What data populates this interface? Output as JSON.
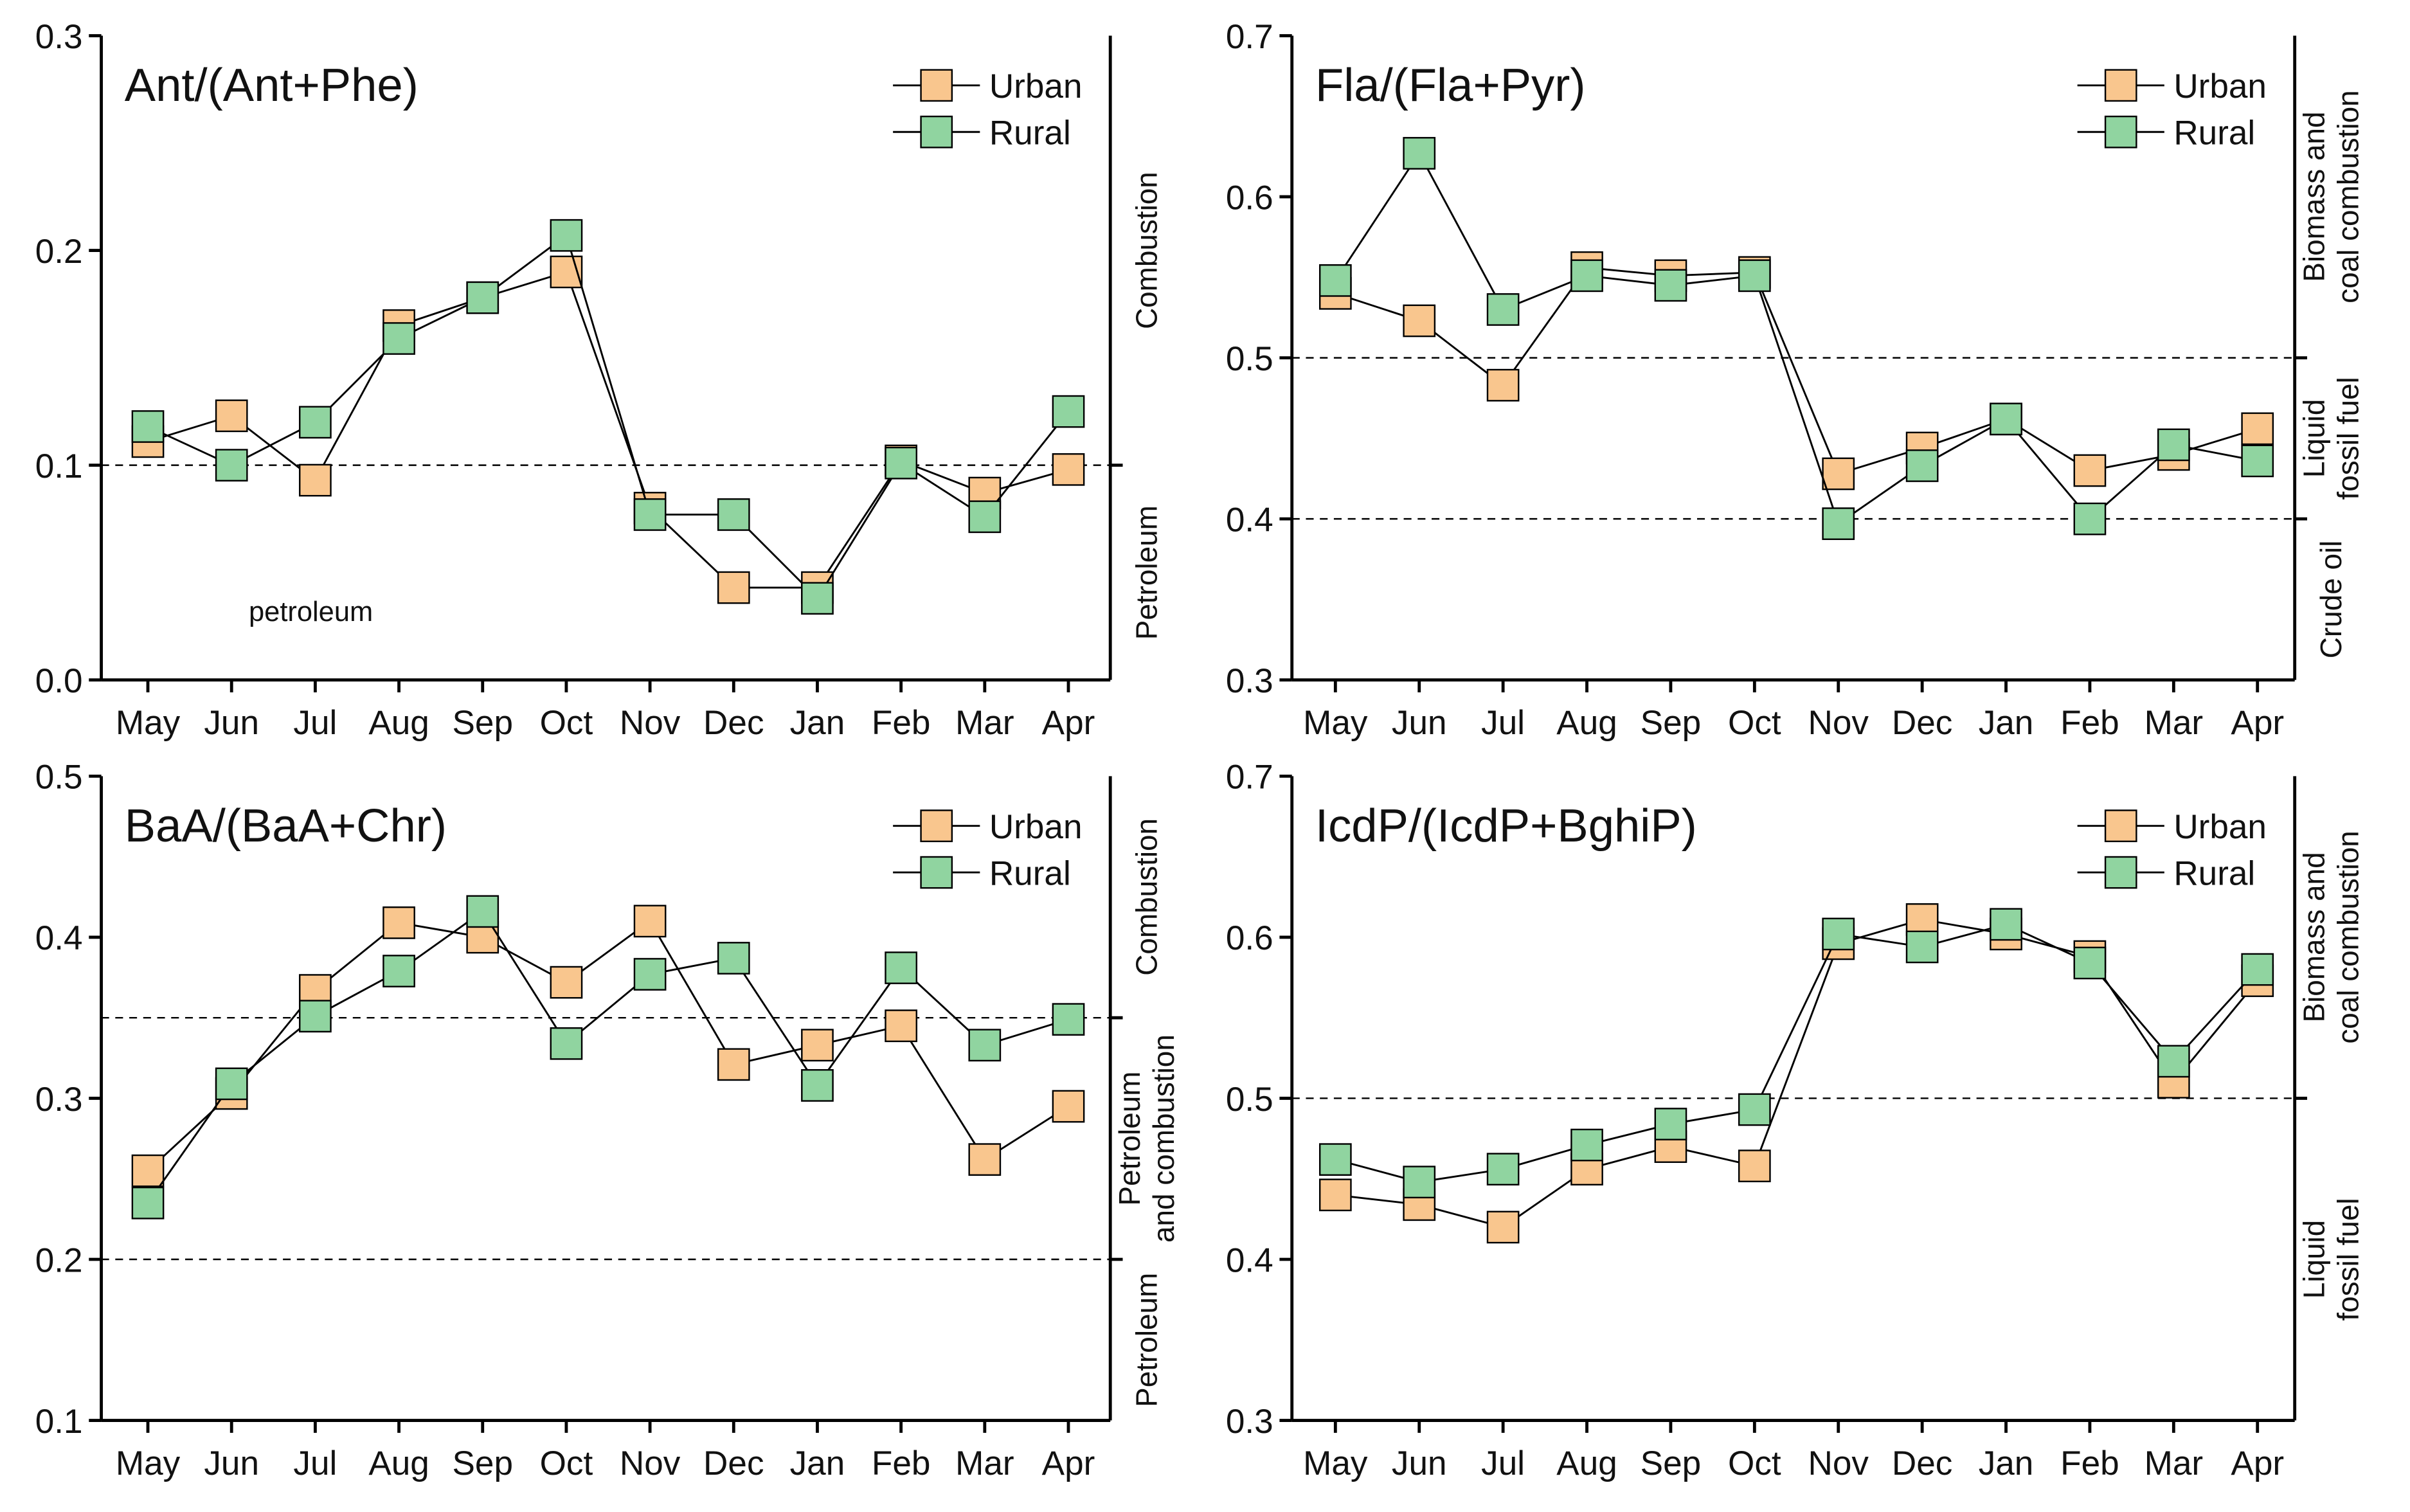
{
  "chart_data": [
    {
      "type": "line",
      "title": "Ant/(Ant+Phe)",
      "categories": [
        "May",
        "Jun",
        "Jul",
        "Aug",
        "Sep",
        "Oct",
        "Nov",
        "Dec",
        "Jan",
        "Feb",
        "Mar",
        "Apr"
      ],
      "series": [
        {
          "name": "Urban",
          "color": "#f9c68e",
          "values": [
            0.111,
            0.123,
            0.093,
            0.165,
            0.178,
            0.19,
            0.08,
            0.043,
            0.043,
            0.102,
            0.087,
            0.098
          ]
        },
        {
          "name": "Rural",
          "color": "#90d4a0",
          "values": [
            0.118,
            0.1,
            0.12,
            0.159,
            0.178,
            0.207,
            0.077,
            0.077,
            0.038,
            0.101,
            0.076,
            0.125
          ]
        }
      ],
      "ylim": [
        0,
        0.3
      ],
      "yticks": [
        {
          "value": 0,
          "label": "0.0"
        },
        0.1,
        0.2,
        0.3
      ],
      "hlines": [
        0.1
      ],
      "regions": [
        [
          "Combustion"
        ],
        [
          "Petroleum"
        ]
      ],
      "annotation": "petroleum"
    },
    {
      "type": "line",
      "title": "Fla/(Fla+Pyr)",
      "categories": [
        "May",
        "Jun",
        "Jul",
        "Aug",
        "Sep",
        "Oct",
        "Nov",
        "Dec",
        "Jan",
        "Feb",
        "Mar",
        "Apr"
      ],
      "series": [
        {
          "name": "Urban",
          "color": "#f9c68e",
          "values": [
            0.54,
            0.523,
            0.483,
            0.556,
            0.551,
            0.553,
            0.428,
            0.444,
            0.462,
            0.43,
            0.44,
            0.456
          ]
        },
        {
          "name": "Rural",
          "color": "#90d4a0",
          "values": [
            0.548,
            0.627,
            0.53,
            0.551,
            0.545,
            0.551,
            0.397,
            0.433,
            0.462,
            0.4,
            0.446,
            0.436
          ]
        }
      ],
      "ylim": [
        0.3,
        0.7
      ],
      "yticks": [
        0.3,
        0.4,
        0.5,
        0.6,
        0.7
      ],
      "hlines": [
        0.5,
        0.4
      ],
      "regions": [
        [
          "Biomass and",
          "coal combustion"
        ],
        [
          "Liquid",
          "fossil fuel"
        ],
        [
          "Crude oil"
        ]
      ]
    },
    {
      "type": "line",
      "title": "BaA/(BaA+Chr)",
      "categories": [
        "May",
        "Jun",
        "Jul",
        "Aug",
        "Sep",
        "Oct",
        "Nov",
        "Dec",
        "Jan",
        "Feb",
        "Mar",
        "Apr"
      ],
      "series": [
        {
          "name": "Urban",
          "color": "#f9c68e",
          "values": [
            0.255,
            0.303,
            0.367,
            0.409,
            0.4,
            0.372,
            0.41,
            0.321,
            0.333,
            0.345,
            0.262,
            0.295
          ]
        },
        {
          "name": "Rural",
          "color": "#90d4a0",
          "values": [
            0.235,
            0.309,
            0.351,
            0.379,
            0.416,
            0.334,
            0.377,
            0.387,
            0.308,
            0.381,
            0.333,
            0.349
          ]
        }
      ],
      "ylim": [
        0.1,
        0.5
      ],
      "yticks": [
        0.1,
        0.2,
        0.3,
        0.4,
        0.5
      ],
      "hlines": [
        0.35,
        0.2
      ],
      "regions": [
        [
          "Combustion"
        ],
        [
          "Petroleum",
          "and combustion"
        ],
        [
          "Petroleum"
        ]
      ]
    },
    {
      "type": "line",
      "title": "IcdP/(IcdP+BghiP)",
      "categories": [
        "May",
        "Jun",
        "Jul",
        "Aug",
        "Sep",
        "Oct",
        "Nov",
        "Dec",
        "Jan",
        "Feb",
        "Mar",
        "Apr"
      ],
      "series": [
        {
          "name": "Urban",
          "color": "#f9c68e",
          "values": [
            0.44,
            0.434,
            0.42,
            0.456,
            0.47,
            0.458,
            0.596,
            0.611,
            0.602,
            0.588,
            0.51,
            0.573
          ]
        },
        {
          "name": "Rural",
          "color": "#90d4a0",
          "values": [
            0.462,
            0.448,
            0.456,
            0.471,
            0.484,
            0.493,
            0.602,
            0.594,
            0.608,
            0.584,
            0.523,
            0.58
          ]
        }
      ],
      "ylim": [
        0.3,
        0.7
      ],
      "yticks": [
        0.3,
        0.4,
        0.5,
        0.6,
        0.7
      ],
      "hlines": [
        0.5
      ],
      "regions": [
        [
          "Biomass and",
          "coal combustion"
        ],
        [
          "Liquid",
          "fossil fuel"
        ]
      ]
    }
  ]
}
